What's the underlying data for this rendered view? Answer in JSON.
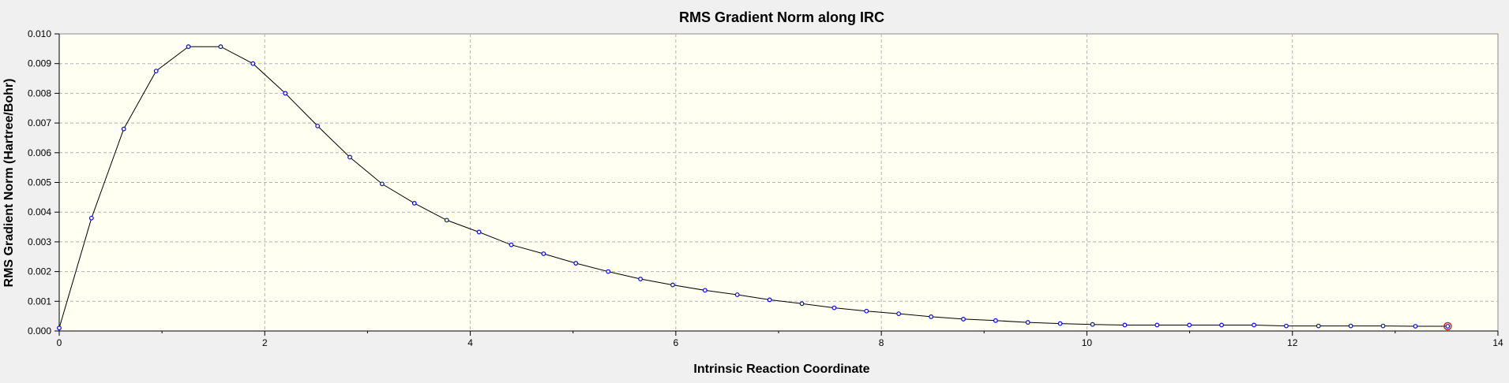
{
  "chart_data": {
    "type": "line",
    "title": "RMS Gradient Norm along IRC",
    "xlabel": "Intrinsic Reaction Coordinate",
    "ylabel": "RMS Gradient Norm (Hartree/Bohr)",
    "xlim": [
      0,
      14
    ],
    "ylim": [
      0,
      0.01
    ],
    "xticks": [
      0,
      2,
      4,
      6,
      8,
      10,
      12,
      14
    ],
    "xtick_labels": [
      "0",
      "2",
      "4",
      "6",
      "8",
      "10",
      "12",
      "14"
    ],
    "yticks": [
      0,
      0.001,
      0.002,
      0.003,
      0.004,
      0.005,
      0.006,
      0.007,
      0.008,
      0.009,
      0.01
    ],
    "ytick_labels": [
      "0.000",
      "0.001",
      "0.002",
      "0.003",
      "0.004",
      "0.005",
      "0.006",
      "0.007",
      "0.008",
      "0.009",
      "0.010"
    ],
    "grid": true,
    "plot_background": "#fffff2",
    "line_color": "#000000",
    "marker_color": "#0000ff",
    "highlight_color": "#d01010",
    "highlight_index": 43,
    "series": [
      {
        "x": [
          0,
          0.314,
          0.628,
          0.943,
          1.257,
          1.571,
          1.885,
          2.2,
          2.514,
          2.828,
          3.142,
          3.456,
          3.771,
          4.085,
          4.399,
          4.713,
          5.027,
          5.342,
          5.656,
          5.97,
          6.284,
          6.598,
          6.913,
          7.227,
          7.541,
          7.855,
          8.169,
          8.484,
          8.798,
          9.112,
          9.426,
          9.74,
          10.055,
          10.369,
          10.683,
          10.997,
          11.311,
          11.626,
          11.94,
          12.254,
          12.568,
          12.882,
          13.197,
          13.511
        ],
        "y": [
          0.0001,
          0.0038,
          0.0068,
          0.00875,
          0.00957,
          0.00957,
          0.009,
          0.008,
          0.0069,
          0.00585,
          0.00495,
          0.0043,
          0.00373,
          0.00333,
          0.0029,
          0.0026,
          0.00228,
          0.002,
          0.00175,
          0.00155,
          0.00137,
          0.00122,
          0.00105,
          0.00092,
          0.00078,
          0.00067,
          0.00058,
          0.00048,
          0.0004,
          0.00035,
          0.00029,
          0.00025,
          0.00022,
          0.0002,
          0.0002,
          0.0002,
          0.0002,
          0.0002,
          0.00017,
          0.00017,
          0.00017,
          0.00017,
          0.00016,
          0.00016
        ]
      }
    ]
  }
}
